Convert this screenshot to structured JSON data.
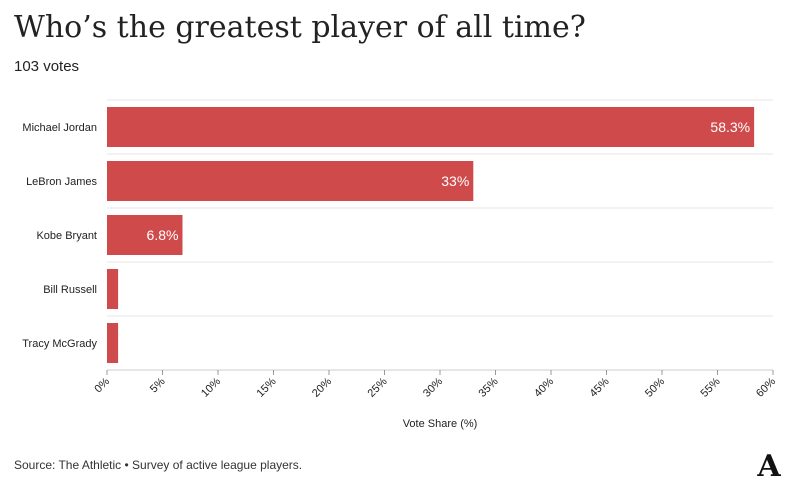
{
  "title": "Who’s the greatest player of all time?",
  "subtitle": "103 votes",
  "source": "Source: The Athletic • Survey of active league players.",
  "logo_letter": "A",
  "colors": {
    "bar": "#cf4a4b",
    "grid": "#e6e6e6",
    "text": "#222222"
  },
  "chart_data": {
    "type": "bar",
    "orientation": "horizontal",
    "categories": [
      "Michael Jordan",
      "LeBron James",
      "Kobe Bryant",
      "Bill Russell",
      "Tracy McGrady"
    ],
    "values": [
      58.3,
      33,
      6.8,
      1,
      1
    ],
    "data_labels": [
      "58.3%",
      "33%",
      "6.8%",
      "",
      ""
    ],
    "xlabel": "Vote Share (%)",
    "ylabel": "",
    "xlim": [
      0,
      60
    ],
    "xticks": [
      0,
      5,
      10,
      15,
      20,
      25,
      30,
      35,
      40,
      45,
      50,
      55,
      60
    ],
    "xtick_labels": [
      "0%",
      "5%",
      "10%",
      "15%",
      "20%",
      "25%",
      "30%",
      "35%",
      "40%",
      "45%",
      "50%",
      "55%",
      "60%"
    ],
    "grid": true
  }
}
